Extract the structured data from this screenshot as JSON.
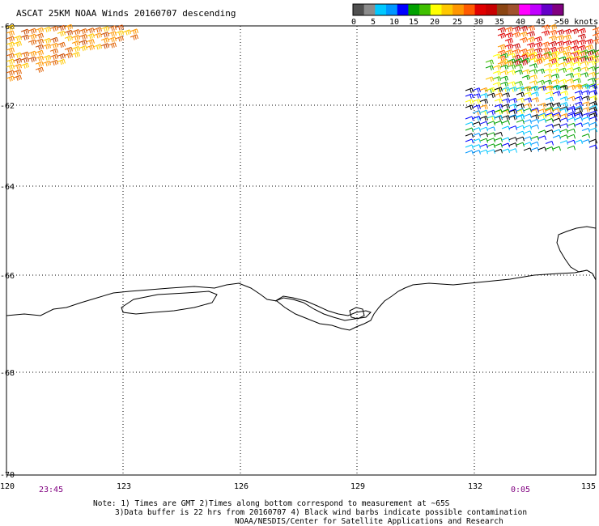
{
  "title": "ASCAT 25KM NOAA Winds 20160707 descending",
  "legend": {
    "labels": [
      "0",
      "5",
      "10",
      "15",
      "20",
      "25",
      "30",
      "35",
      "40",
      "45",
      ">50 knots"
    ],
    "colors": [
      "#505050",
      "#8c8c8c",
      "#00c8ff",
      "#0096ff",
      "#0000ff",
      "#00a000",
      "#40c000",
      "#ffff00",
      "#ffc800",
      "#ff9600",
      "#ff5a00",
      "#e00000",
      "#c80000",
      "#8b4513",
      "#a0522d",
      "#ff00ff",
      "#c000ff",
      "#6400c8",
      "#800080"
    ]
  },
  "axes": {
    "lat_labels": [
      "-60",
      "-62",
      "-64",
      "-66",
      "-68",
      "-70"
    ],
    "lon_labels": [
      "120",
      "123",
      "126",
      "129",
      "132",
      "135"
    ]
  },
  "times": {
    "left": "23:45",
    "right": "0:05"
  },
  "notes": [
    "Note: 1) Times are GMT 2)Times along bottom correspond to measurement at ~65S",
    "3)Data buffer is 22 hrs from 20160707 4) Black wind barbs indicate possible contamination",
    "NOAA/NESDIS/Center for Satellite Applications and Research"
  ]
}
